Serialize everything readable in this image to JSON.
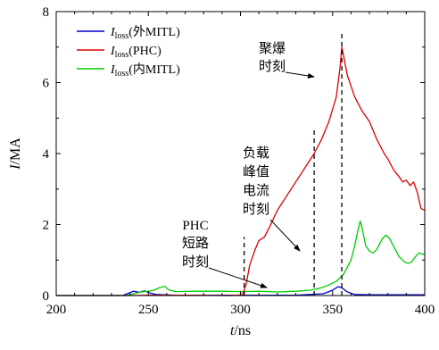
{
  "chart_data": {
    "type": "line",
    "xlabel_var": "t",
    "xlabel_unit": "/ns",
    "ylabel_var": "I",
    "ylabel_unit": "/MA",
    "xlim": [
      200,
      400
    ],
    "ylim": [
      0,
      8
    ],
    "xticks": [
      "200",
      "250",
      "300",
      "350",
      "400"
    ],
    "yticks": [
      "0",
      "2",
      "4",
      "6",
      "8"
    ],
    "grid": false,
    "legend_position": "top-left",
    "series": [
      {
        "legend_var": "I",
        "legend_sub": "loss",
        "legend_suffix": "(外MITL)",
        "color": "#0000cc",
        "points": [
          [
            200,
            0
          ],
          [
            236,
            0
          ],
          [
            239,
            0.06
          ],
          [
            242,
            0.12
          ],
          [
            245,
            0.09
          ],
          [
            248,
            0.13
          ],
          [
            251,
            0.07
          ],
          [
            254,
            0.03
          ],
          [
            258,
            0.02
          ],
          [
            265,
            0.01
          ],
          [
            300,
            0.01
          ],
          [
            330,
            0.01
          ],
          [
            345,
            0.05
          ],
          [
            350,
            0.15
          ],
          [
            353,
            0.25
          ],
          [
            355,
            0.22
          ],
          [
            358,
            0.1
          ],
          [
            362,
            0.03
          ],
          [
            370,
            0.02
          ],
          [
            400,
            0.02
          ]
        ]
      },
      {
        "legend_var": "I",
        "legend_sub": "loss",
        "legend_suffix": "(PHC)",
        "color": "#dd0000",
        "points": [
          [
            200,
            0
          ],
          [
            240,
            0
          ],
          [
            250,
            0.01
          ],
          [
            270,
            0.01
          ],
          [
            295,
            0
          ],
          [
            301,
            0.02
          ],
          [
            303,
            0.3
          ],
          [
            305,
            0.85
          ],
          [
            308,
            1.3
          ],
          [
            310,
            1.55
          ],
          [
            313,
            1.65
          ],
          [
            316,
            1.95
          ],
          [
            320,
            2.4
          ],
          [
            325,
            2.8
          ],
          [
            330,
            3.2
          ],
          [
            335,
            3.6
          ],
          [
            340,
            4.0
          ],
          [
            344,
            4.4
          ],
          [
            348,
            4.9
          ],
          [
            352,
            5.6
          ],
          [
            354,
            6.4
          ],
          [
            355,
            7.0
          ],
          [
            356,
            6.75
          ],
          [
            358,
            6.2
          ],
          [
            362,
            5.6
          ],
          [
            366,
            5.2
          ],
          [
            370,
            4.9
          ],
          [
            374,
            4.4
          ],
          [
            378,
            4.0
          ],
          [
            380,
            3.85
          ],
          [
            383,
            3.55
          ],
          [
            386,
            3.35
          ],
          [
            388,
            3.2
          ],
          [
            390,
            3.25
          ],
          [
            392,
            3.1
          ],
          [
            394,
            3.2
          ],
          [
            396,
            2.9
          ],
          [
            398,
            2.45
          ],
          [
            400,
            2.4
          ]
        ]
      },
      {
        "legend_var": "I",
        "legend_sub": "loss",
        "legend_suffix": "(内MITL)",
        "color": "#00cc00",
        "points": [
          [
            200,
            0
          ],
          [
            238,
            0
          ],
          [
            242,
            0.05
          ],
          [
            246,
            0.1
          ],
          [
            250,
            0.12
          ],
          [
            253,
            0.15
          ],
          [
            256,
            0.22
          ],
          [
            259,
            0.26
          ],
          [
            261,
            0.16
          ],
          [
            265,
            0.11
          ],
          [
            275,
            0.12
          ],
          [
            290,
            0.12
          ],
          [
            300,
            0.11
          ],
          [
            310,
            0.12
          ],
          [
            320,
            0.1
          ],
          [
            330,
            0.12
          ],
          [
            338,
            0.15
          ],
          [
            344,
            0.22
          ],
          [
            348,
            0.3
          ],
          [
            352,
            0.4
          ],
          [
            356,
            0.6
          ],
          [
            360,
            1.0
          ],
          [
            362,
            1.4
          ],
          [
            364,
            1.9
          ],
          [
            365,
            2.1
          ],
          [
            366,
            1.9
          ],
          [
            368,
            1.4
          ],
          [
            370,
            1.25
          ],
          [
            372,
            1.2
          ],
          [
            374,
            1.3
          ],
          [
            377,
            1.6
          ],
          [
            379,
            1.7
          ],
          [
            381,
            1.6
          ],
          [
            383,
            1.4
          ],
          [
            386,
            1.1
          ],
          [
            389,
            0.95
          ],
          [
            391,
            0.9
          ],
          [
            393,
            0.95
          ],
          [
            395,
            1.1
          ],
          [
            397,
            1.2
          ],
          [
            400,
            1.15
          ]
        ]
      }
    ],
    "annotations": [
      {
        "lines": [
          "PHC",
          "短路",
          "时刻"
        ],
        "line_x": 302,
        "line_y": [
          0,
          1.65
        ]
      },
      {
        "lines": [
          "负载",
          "峰值",
          "电流",
          "时刻"
        ],
        "line_x": 340,
        "line_y": [
          0,
          4.75
        ]
      },
      {
        "lines": [
          "聚爆",
          "时刻"
        ],
        "line_x": 355,
        "line_y": [
          0,
          7.4
        ]
      }
    ]
  }
}
